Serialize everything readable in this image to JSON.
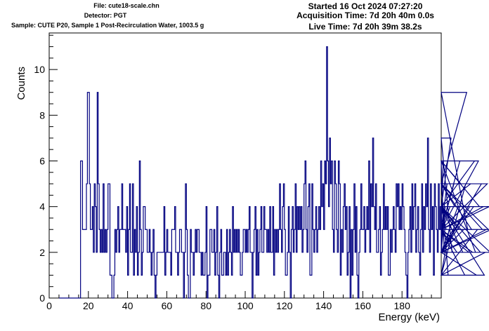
{
  "header": {
    "file": "File: cute18-scale.chn",
    "detector": "Detector: PGT",
    "sample": "Sample: CUTE P20, Sample 1 Post-Recirculation Water, 1003.5 g",
    "started": "Started 16 Oct 2024 07:27:20",
    "acquisition": "Acquisition Time: 7d 20h 40m 0.0s",
    "live": "Live Time: 7d 20h 39m 38.2s"
  },
  "colors": {
    "line": "#000080",
    "axis": "#000000",
    "background": "#ffffff"
  },
  "chart_data": {
    "type": "line",
    "style": "step-histogram",
    "title": "",
    "xlabel": "Energy (keV)",
    "ylabel": "Counts",
    "xlim": [
      0,
      200
    ],
    "ylim": [
      0,
      11.6
    ],
    "xticks": [
      0,
      20,
      40,
      60,
      80,
      100,
      120,
      140,
      160,
      180
    ],
    "yticks": [
      0,
      2,
      4,
      6,
      8,
      10
    ],
    "grid": false,
    "legend": "none",
    "bin_width": 0.5,
    "x_start": 5.0,
    "counts": [
      0,
      0,
      0,
      0,
      0,
      0,
      0,
      0,
      0,
      0,
      0,
      0,
      0,
      0,
      0,
      0,
      0,
      0,
      0,
      0,
      0,
      0,
      6,
      6,
      3,
      3,
      3,
      3,
      5,
      9,
      9,
      5,
      3,
      3,
      4,
      2,
      5,
      4,
      2,
      9,
      5,
      3,
      2,
      3,
      2,
      5,
      2,
      3,
      2,
      3,
      5,
      5,
      1,
      1,
      0,
      0,
      1,
      3,
      2,
      3,
      4,
      2,
      3,
      3,
      5,
      3,
      3,
      3,
      2,
      4,
      1,
      3,
      5,
      2,
      2,
      5,
      1,
      3,
      2,
      4,
      1,
      2,
      6,
      3,
      1,
      2,
      4,
      4,
      3,
      3,
      2,
      2,
      3,
      2,
      1,
      2,
      3,
      1,
      0,
      1,
      2,
      2,
      2,
      2,
      2,
      2,
      2,
      4,
      1,
      2,
      3,
      2,
      2,
      2,
      1,
      3,
      3,
      3,
      4,
      2,
      2,
      1,
      2,
      3,
      3,
      2,
      2,
      0,
      2,
      5,
      3,
      1,
      0,
      0,
      3,
      2,
      2,
      1,
      2,
      3,
      2,
      3,
      3,
      2,
      2,
      1,
      2,
      1,
      1,
      2,
      4,
      0,
      1,
      1,
      3,
      3,
      2,
      2,
      3,
      1,
      2,
      4,
      1,
      0,
      2,
      3,
      1,
      1,
      2,
      2,
      1,
      3,
      1,
      2,
      3,
      2,
      1,
      4,
      2,
      3,
      2,
      3,
      2,
      3,
      2,
      1,
      1,
      2,
      3,
      3,
      2,
      3,
      2,
      3,
      4,
      2,
      2,
      0,
      2,
      3,
      4,
      1,
      3,
      1,
      2,
      3,
      4,
      2,
      2,
      4,
      3,
      3,
      2,
      3,
      2,
      4,
      2,
      2,
      4,
      1,
      3,
      2,
      3,
      2,
      3,
      5,
      3,
      2,
      4,
      5,
      3,
      1,
      1,
      2,
      4,
      2,
      0,
      3,
      4,
      2,
      3,
      5,
      2,
      4,
      3,
      4,
      3,
      4,
      2,
      3,
      5,
      6,
      3,
      2,
      4,
      5,
      1,
      1,
      5,
      3,
      2,
      3,
      4,
      2,
      3,
      4,
      3,
      6,
      4,
      5,
      3,
      6,
      5,
      11,
      6,
      4,
      7,
      5,
      6,
      3,
      2,
      6,
      5,
      3,
      2,
      6,
      5,
      1,
      3,
      2,
      4,
      5,
      3,
      4,
      1,
      2,
      4,
      0,
      3,
      1,
      3,
      5,
      2,
      4,
      1,
      0,
      2,
      3,
      5,
      3,
      3,
      4,
      2,
      3,
      4,
      3,
      6,
      2,
      5,
      4,
      7,
      4,
      3,
      5,
      2,
      2,
      3,
      4,
      1,
      2,
      3,
      5,
      3,
      4,
      3,
      4,
      1,
      1,
      3,
      2,
      3,
      4,
      3,
      2,
      5,
      4,
      5,
      3,
      4,
      3,
      5,
      4,
      3,
      2,
      1,
      0,
      2,
      3,
      4,
      2,
      5,
      3,
      4,
      5,
      2,
      3,
      4,
      2,
      1,
      3,
      5,
      2,
      4,
      3,
      5,
      4,
      7,
      3,
      2,
      5,
      3,
      4,
      1,
      5,
      4,
      3,
      2,
      5,
      3,
      4,
      2,
      3,
      6,
      2,
      4,
      3,
      5,
      1,
      3,
      4,
      7,
      2,
      3,
      5,
      4,
      3,
      2,
      4,
      3,
      6,
      5,
      4,
      2,
      3,
      1,
      5,
      9,
      3,
      2,
      4,
      5,
      3,
      2,
      4,
      6,
      2,
      1,
      3,
      6,
      4,
      2,
      5,
      3,
      4,
      1,
      2,
      3,
      5,
      3,
      4,
      2,
      3,
      3
    ]
  }
}
